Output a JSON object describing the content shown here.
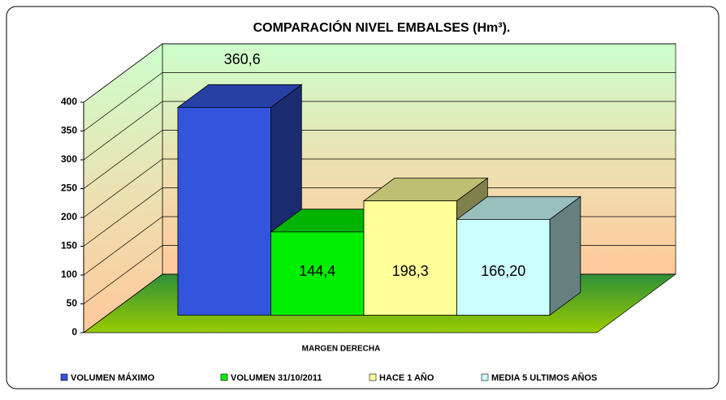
{
  "chart_data": {
    "type": "bar3d",
    "title": "COMPARACIÓN NIVEL EMBALSES (Hm³).",
    "categories": [
      "MARGEN DERECHA"
    ],
    "series": [
      {
        "name": "VOLUMEN MÁXIMO",
        "color": "#3355dd",
        "values": [
          360.6
        ],
        "value_labels": [
          "360,6"
        ]
      },
      {
        "name": "VOLUMEN 31/10/2011",
        "color": "#00ee00",
        "values": [
          144.4
        ],
        "value_labels": [
          "144,4"
        ]
      },
      {
        "name": "HACE 1 AÑO",
        "color": "#ffff99",
        "values": [
          198.3
        ],
        "value_labels": [
          "198,3"
        ]
      },
      {
        "name": "MEDIA 5 ULTIMOS AÑOS",
        "color": "#ccffff",
        "values": [
          166.2
        ],
        "value_labels": [
          "166,20"
        ]
      }
    ],
    "ylim": [
      0,
      400
    ],
    "yticks": [
      0,
      50,
      100,
      150,
      200,
      250,
      300,
      350,
      400
    ],
    "grid": true,
    "legend": "bottom"
  }
}
